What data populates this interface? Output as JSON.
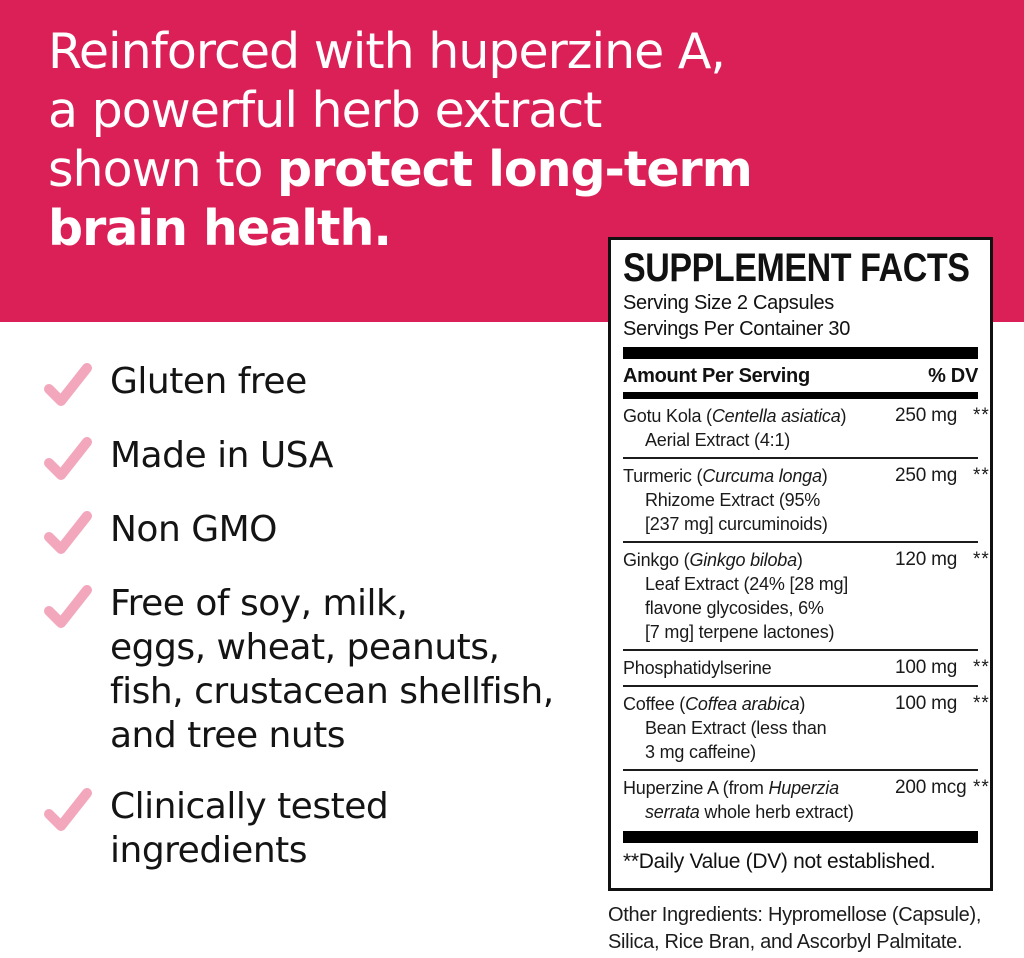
{
  "banner": {
    "background_color": "#DB2057",
    "headline_regular": "Reinforced with huperzine A,\na powerful herb extract\nshown to ",
    "headline_bold": "protect long-term\nbrain health."
  },
  "checklist": {
    "check_color": "#F2A7BD",
    "items": [
      {
        "label": "Gluten free"
      },
      {
        "label": "Made in USA"
      },
      {
        "label": "Non GMO"
      },
      {
        "label": "Free of soy, milk,\neggs, wheat, peanuts,\nfish, crustacean shellfish,\nand tree nuts"
      },
      {
        "label": "Clinically tested\ningredients"
      }
    ]
  },
  "supplement_facts": {
    "title": "SUPPLEMENT FACTS",
    "serving_size": "Serving Size 2 Capsules",
    "servings_per_container": "Servings Per Container 30",
    "columns": {
      "amount_header": "Amount Per Serving",
      "dv_header": "% DV"
    },
    "rows": [
      {
        "name": [
          {
            "t": "Gotu Kola ("
          },
          {
            "t": "Centella asiatica",
            "i": true
          },
          {
            "t": ")\nAerial Extract (4:1)"
          }
        ],
        "amount": "250 mg",
        "dv": "**"
      },
      {
        "name": [
          {
            "t": "Turmeric ("
          },
          {
            "t": "Curcuma longa",
            "i": true
          },
          {
            "t": ")\nRhizome Extract (95%\n[237 mg] curcuminoids)"
          }
        ],
        "amount": "250 mg",
        "dv": "**"
      },
      {
        "name": [
          {
            "t": "Ginkgo ("
          },
          {
            "t": "Ginkgo biloba",
            "i": true
          },
          {
            "t": ")\nLeaf Extract (24% [28 mg]\nflavone glycosides, 6%\n[7 mg] terpene lactones)"
          }
        ],
        "amount": "120 mg",
        "dv": "**"
      },
      {
        "name": [
          {
            "t": "Phosphatidylserine"
          }
        ],
        "amount": "100 mg",
        "dv": "**"
      },
      {
        "name": [
          {
            "t": "Coffee ("
          },
          {
            "t": "Coffea arabica",
            "i": true
          },
          {
            "t": ")\nBean Extract (less than\n3 mg caffeine)"
          }
        ],
        "amount": "100 mg",
        "dv": "**"
      },
      {
        "name": [
          {
            "t": "Huperzine A (from "
          },
          {
            "t": "Huperzia\nserrata",
            "i": true
          },
          {
            "t": " whole herb extract)"
          }
        ],
        "amount": "200 mcg",
        "dv": "**"
      }
    ],
    "footnote": "**Daily Value (DV) not established.",
    "other_ingredients": "Other Ingredients: Hypromellose (Capsule),\nSilica, Rice Bran, and Ascorbyl Palmitate."
  }
}
